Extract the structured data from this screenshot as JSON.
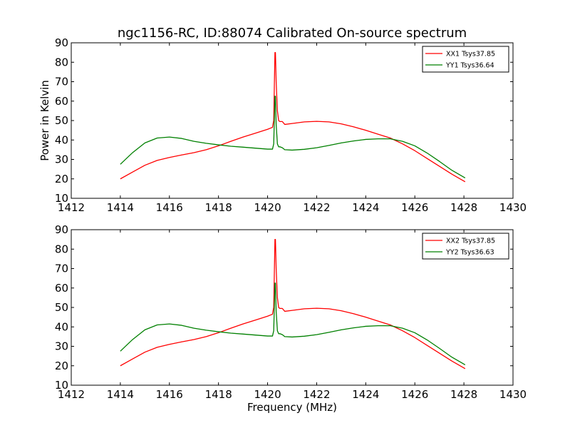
{
  "title": "ngc1156-RC, ID:88074 Calibrated On-source spectrum",
  "xlabel": "Frequency (MHz)",
  "ylabel": "Power in Kelvin",
  "chart_data": [
    {
      "type": "line",
      "xlim": [
        1412,
        1430
      ],
      "ylim": [
        10,
        90
      ],
      "xticks": [
        1412,
        1414,
        1416,
        1418,
        1420,
        1422,
        1424,
        1426,
        1428,
        1430
      ],
      "yticks": [
        10,
        20,
        30,
        40,
        50,
        60,
        70,
        80,
        90
      ],
      "ylabel": "Power in Kelvin",
      "xlabel": "",
      "legend_position": "top-right",
      "series": [
        {
          "name": "XX1 Tsys37.85",
          "color": "#ff0000",
          "x": [
            1414,
            1414.5,
            1415,
            1415.5,
            1416,
            1416.5,
            1417,
            1417.5,
            1418,
            1418.5,
            1419,
            1419.5,
            1420,
            1420.2,
            1420.25,
            1420.3,
            1420.32,
            1420.35,
            1420.4,
            1420.45,
            1420.5,
            1420.6,
            1420.7,
            1421,
            1421.5,
            1422,
            1422.5,
            1423,
            1423.5,
            1424,
            1424.5,
            1425,
            1425.5,
            1426,
            1426.5,
            1427,
            1427.5,
            1428.05
          ],
          "y": [
            20,
            23.5,
            27,
            29.5,
            31,
            32.3,
            33.5,
            35,
            37,
            39.3,
            41.5,
            43.5,
            45.5,
            46.5,
            50,
            85,
            85,
            70,
            55,
            50,
            49.5,
            49.5,
            48,
            48.5,
            49.3,
            49.6,
            49.3,
            48.3,
            46.8,
            45,
            43,
            41,
            38,
            34.5,
            30.5,
            26.5,
            22.5,
            18.5
          ]
        },
        {
          "name": "YY1 Tsys36.64",
          "color": "#008000",
          "x": [
            1414,
            1414.5,
            1415,
            1415.5,
            1416,
            1416.5,
            1417,
            1417.5,
            1418,
            1418.5,
            1419,
            1419.5,
            1420,
            1420.2,
            1420.25,
            1420.3,
            1420.32,
            1420.35,
            1420.4,
            1420.45,
            1420.5,
            1420.6,
            1420.7,
            1421,
            1421.5,
            1422,
            1422.5,
            1423,
            1423.5,
            1424,
            1424.5,
            1425,
            1425.5,
            1426,
            1426.5,
            1427,
            1427.5,
            1428.05
          ],
          "y": [
            27.5,
            33.5,
            38.5,
            41,
            41.5,
            40.8,
            39.3,
            38.3,
            37.5,
            36.8,
            36.3,
            35.8,
            35.3,
            35.3,
            38,
            62.5,
            62.5,
            48,
            38,
            36.5,
            36.5,
            36,
            35,
            34.8,
            35.2,
            36,
            37.2,
            38.5,
            39.5,
            40.3,
            40.6,
            40.6,
            39.3,
            37,
            33.3,
            29,
            24.5,
            20.5
          ]
        }
      ]
    },
    {
      "type": "line",
      "xlim": [
        1412,
        1430
      ],
      "ylim": [
        10,
        90
      ],
      "xticks": [
        1412,
        1414,
        1416,
        1418,
        1420,
        1422,
        1424,
        1426,
        1428,
        1430
      ],
      "yticks": [
        10,
        20,
        30,
        40,
        50,
        60,
        70,
        80,
        90
      ],
      "xlabel": "Frequency (MHz)",
      "ylabel": "",
      "legend_position": "top-right",
      "series": [
        {
          "name": "XX2 Tsys37.85",
          "color": "#ff0000",
          "x": [
            1414,
            1414.5,
            1415,
            1415.5,
            1416,
            1416.5,
            1417,
            1417.5,
            1418,
            1418.5,
            1419,
            1419.5,
            1420,
            1420.2,
            1420.25,
            1420.3,
            1420.32,
            1420.35,
            1420.4,
            1420.45,
            1420.5,
            1420.6,
            1420.7,
            1421,
            1421.5,
            1422,
            1422.5,
            1423,
            1423.5,
            1424,
            1424.5,
            1425,
            1425.5,
            1426,
            1426.5,
            1427,
            1427.5,
            1428.05
          ],
          "y": [
            20,
            23.5,
            27,
            29.5,
            31,
            32.3,
            33.5,
            35,
            37,
            39.3,
            41.5,
            43.5,
            45.5,
            46.5,
            50,
            85,
            85,
            70,
            55,
            50,
            49.5,
            49.5,
            48,
            48.5,
            49.3,
            49.6,
            49.3,
            48.3,
            46.8,
            45,
            43,
            41,
            38,
            34.5,
            30.5,
            26.5,
            22.5,
            18.5
          ]
        },
        {
          "name": "YY2 Tsys36.63",
          "color": "#008000",
          "x": [
            1414,
            1414.5,
            1415,
            1415.5,
            1416,
            1416.5,
            1417,
            1417.5,
            1418,
            1418.5,
            1419,
            1419.5,
            1420,
            1420.2,
            1420.25,
            1420.3,
            1420.32,
            1420.35,
            1420.4,
            1420.45,
            1420.5,
            1420.6,
            1420.7,
            1421,
            1421.5,
            1422,
            1422.5,
            1423,
            1423.5,
            1424,
            1424.5,
            1425,
            1425.5,
            1426,
            1426.5,
            1427,
            1427.5,
            1428.05
          ],
          "y": [
            27.5,
            33.5,
            38.5,
            41,
            41.5,
            40.8,
            39.3,
            38.3,
            37.5,
            36.8,
            36.3,
            35.8,
            35.3,
            35.3,
            38,
            62.5,
            62.5,
            48,
            38,
            36.5,
            36.5,
            36,
            35,
            34.8,
            35.2,
            36,
            37.2,
            38.5,
            39.5,
            40.3,
            40.6,
            40.6,
            39.3,
            37,
            33.3,
            29,
            24.5,
            20.5
          ]
        }
      ]
    }
  ]
}
